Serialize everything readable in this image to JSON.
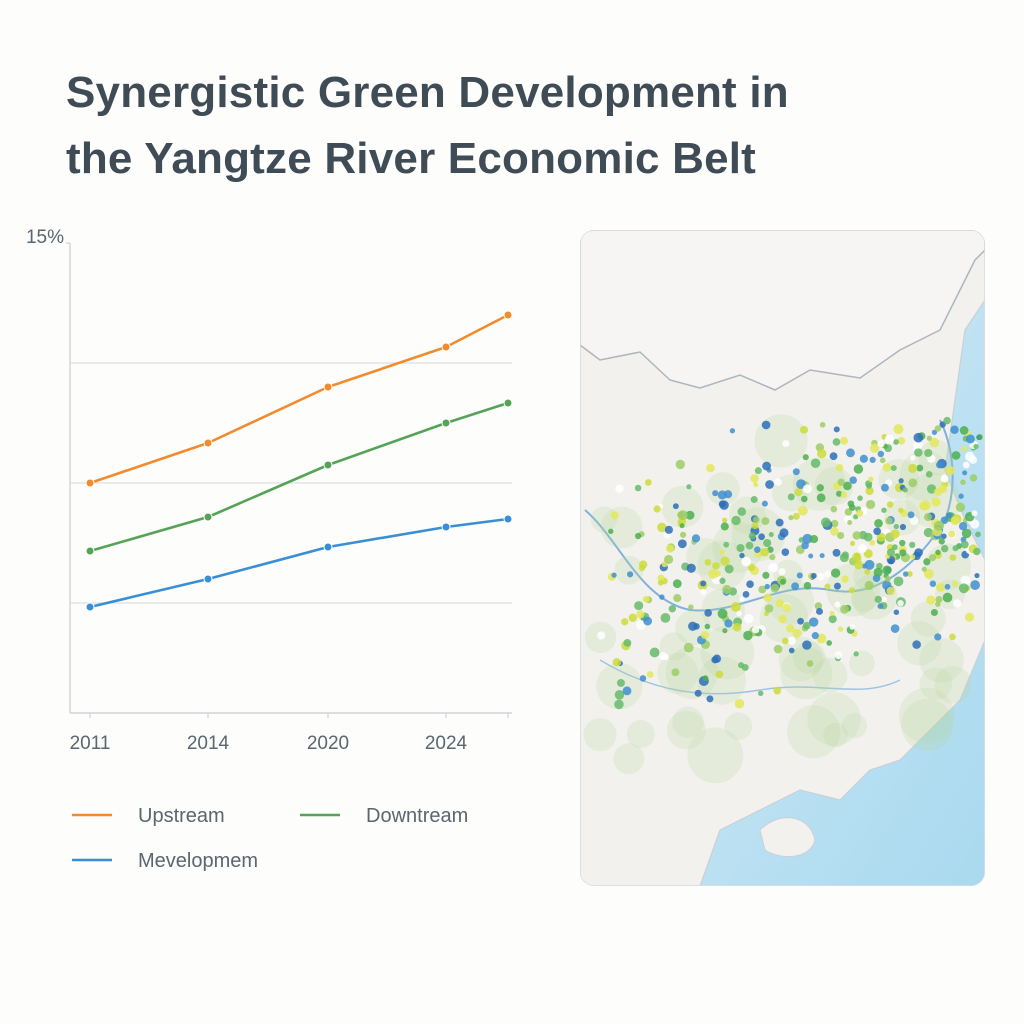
{
  "chart_data": {
    "type": "line",
    "title": "Synergistic Green Development in the Yangtze River Economic Belt",
    "categories": [
      "2011",
      "2014",
      "2020",
      "2024",
      null
    ],
    "series": [
      {
        "name": "Upstream",
        "color": "#f28a2e",
        "values": [
          9,
          10,
          11.4,
          12.4,
          13.2
        ]
      },
      {
        "name": "Downtream",
        "color": "#55a356",
        "values": [
          7.3,
          8.15,
          9.45,
          10.5,
          11
        ]
      },
      {
        "name": "Mevelopmem",
        "color": "#3a8fd4",
        "values": [
          5.9,
          6.6,
          7.4,
          7.9,
          8.1
        ]
      }
    ],
    "ylim": [
      3.25,
      15
    ],
    "yticks": [
      {
        "value": 15,
        "label": "15%"
      }
    ],
    "ygrid": [
      6,
      9,
      12
    ],
    "grid": true
  }
}
